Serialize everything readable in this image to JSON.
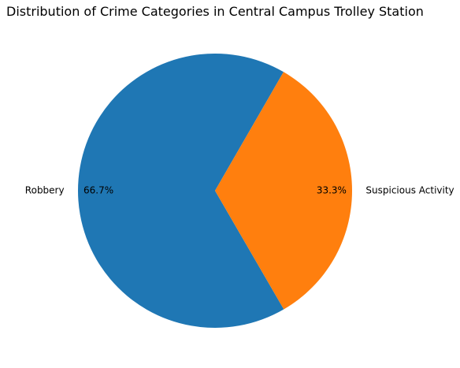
{
  "chart_data": {
    "type": "pie",
    "title": "Distribution of Crime Categories in Central Campus Trolley Station",
    "categories": [
      "Robbery",
      "Suspicious Activity"
    ],
    "values": [
      66.7,
      33.3
    ],
    "pct_labels": [
      "66.7%",
      "33.3%"
    ],
    "colors": [
      "#1f77b4",
      "#ff7f0e"
    ],
    "start_angle_deg": 60,
    "legend": "none"
  }
}
